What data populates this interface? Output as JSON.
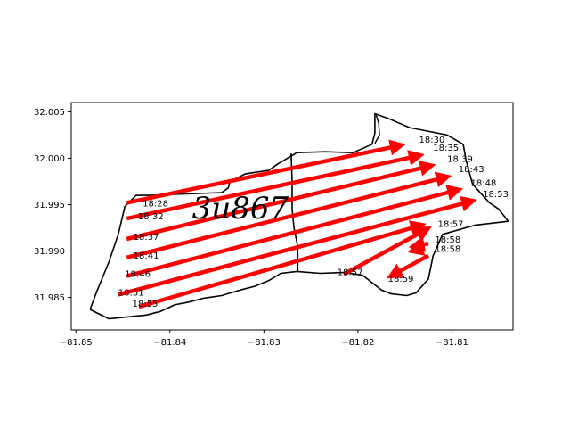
{
  "chart_data": {
    "type": "line",
    "title": "",
    "xlabel": "",
    "ylabel": "",
    "xlim": [
      -81.8505,
      -81.8035
    ],
    "ylim": [
      31.9815,
      32.006
    ],
    "x_ticks": [
      -81.85,
      -81.84,
      -81.83,
      -81.82,
      -81.81
    ],
    "x_tick_labels": [
      "−81.85",
      "−81.84",
      "−81.83",
      "−81.82",
      "−81.81"
    ],
    "y_ticks": [
      31.985,
      31.99,
      31.995,
      32.0,
      32.005
    ],
    "y_tick_labels": [
      "31.985",
      "31.990",
      "31.995",
      "32.000",
      "32.005"
    ],
    "grid": false,
    "watermark": "3u867",
    "colors": {
      "arrow": "#ff0000",
      "boundary": "#000000"
    },
    "boundary": [
      [
        -81.8485,
        31.9837
      ],
      [
        -81.8478,
        31.9856
      ],
      [
        -81.8465,
        31.9888
      ],
      [
        -81.8455,
        31.9918
      ],
      [
        -81.8448,
        31.9948
      ],
      [
        -81.8436,
        31.996
      ],
      [
        -81.842,
        31.996
      ],
      [
        -81.8395,
        31.9961
      ],
      [
        -81.8345,
        31.9963
      ],
      [
        -81.8338,
        31.9968
      ],
      [
        -81.8336,
        31.9975
      ],
      [
        -81.832,
        31.9983
      ],
      [
        -81.8295,
        31.9987
      ],
      [
        -81.8285,
        31.9994
      ],
      [
        -81.8265,
        32.0006
      ],
      [
        -81.8235,
        32.0007
      ],
      [
        -81.8205,
        32.0006
      ],
      [
        -81.8185,
        32.0015
      ],
      [
        -81.8182,
        32.0027
      ],
      [
        -81.8182,
        32.0048
      ],
      [
        -81.8168,
        32.0043
      ],
      [
        -81.8145,
        32.0033
      ],
      [
        -81.8105,
        32.0025
      ],
      [
        -81.8088,
        32.0015
      ],
      [
        -81.8085,
        31.9998
      ],
      [
        -81.8078,
        31.9972
      ],
      [
        -81.806,
        31.9952
      ],
      [
        -81.805,
        31.9945
      ],
      [
        -81.804,
        31.9932
      ],
      [
        -81.8075,
        31.9928
      ],
      [
        -81.811,
        31.9918
      ],
      [
        -81.812,
        31.9895
      ],
      [
        -81.8125,
        31.987
      ],
      [
        -81.8138,
        31.9855
      ],
      [
        -81.8148,
        31.9852
      ],
      [
        -81.8165,
        31.9854
      ],
      [
        -81.8175,
        31.9858
      ],
      [
        -81.8195,
        31.9874
      ],
      [
        -81.8215,
        31.9877
      ],
      [
        -81.824,
        31.9876
      ],
      [
        -81.8265,
        31.9878
      ],
      [
        -81.8282,
        31.9876
      ],
      [
        -81.8295,
        31.9868
      ],
      [
        -81.831,
        31.9862
      ],
      [
        -81.8325,
        31.9858
      ],
      [
        -81.8345,
        31.9852
      ],
      [
        -81.8365,
        31.9849
      ],
      [
        -81.838,
        31.9845
      ],
      [
        -81.8395,
        31.9842
      ],
      [
        -81.841,
        31.9835
      ],
      [
        -81.8425,
        31.9831
      ],
      [
        -81.8445,
        31.9829
      ],
      [
        -81.8465,
        31.9827
      ],
      [
        -81.8485,
        31.9837
      ]
    ],
    "inner_line": [
      [
        -81.8271,
        32.0005
      ],
      [
        -81.827,
        31.9975
      ],
      [
        -81.827,
        31.9945
      ],
      [
        -81.8268,
        31.9925
      ],
      [
        -81.8264,
        31.9905
      ],
      [
        -81.8264,
        31.9878
      ]
    ],
    "small_line": [
      [
        -81.8181,
        32.0048
      ],
      [
        -81.8178,
        32.0038
      ],
      [
        -81.8177,
        32.0025
      ],
      [
        -81.8182,
        32.0016
      ]
    ],
    "segments": [
      {
        "time": "18:28",
        "x1": -81.8446,
        "y1": 31.9952,
        "x2": -81.8154,
        "y2": 32.0014
      },
      {
        "time": "18:32",
        "x1": -81.8446,
        "y1": 31.9935,
        "x2": -81.8134,
        "y2": 32.0003
      },
      {
        "time": "18:35",
        "label_only": true,
        "x": -81.8125,
        "y": 32.0006
      },
      {
        "time": "18:37",
        "x1": -81.8446,
        "y1": 31.9913,
        "x2": -81.8122,
        "y2": 31.9992
      },
      {
        "time": "18:39",
        "label_only": true,
        "x": -81.8112,
        "y": 31.9994
      },
      {
        "time": "18:41",
        "x1": -81.8446,
        "y1": 31.9893,
        "x2": -81.8105,
        "y2": 31.998
      },
      {
        "time": "18:43",
        "label_only": true,
        "x": -81.8102,
        "y": 31.9983
      },
      {
        "time": "18:46",
        "x1": -81.8446,
        "y1": 31.9873,
        "x2": -81.8093,
        "y2": 31.9966
      },
      {
        "time": "18:48",
        "label_only": true,
        "x": -81.8092,
        "y": 31.9969
      },
      {
        "time": "18:51",
        "x1": -81.8455,
        "y1": 31.9853,
        "x2": -81.8078,
        "y2": 31.9954
      },
      {
        "time": "18:53",
        "label_only": true,
        "x": -81.8072,
        "y": 31.9956
      },
      {
        "time": "18:55",
        "x1": -81.8433,
        "y1": 31.984,
        "x2": -81.8132,
        "y2": 31.9928
      },
      {
        "time": "18:57",
        "x1": -81.8215,
        "y1": 31.9875,
        "x2": -81.8126,
        "y2": 31.9924
      },
      {
        "time": "18:58",
        "x1": -81.8125,
        "y1": 31.9908,
        "x2": -81.8141,
        "y2": 31.9905
      },
      {
        "time": "18:58",
        "x1": -81.8141,
        "y1": 31.9905,
        "x2": -81.8132,
        "y2": 31.9898
      },
      {
        "time": "18:57",
        "x1": -81.8125,
        "y1": 31.9895,
        "x2": -81.8165,
        "y2": 31.9873
      },
      {
        "time": "18:59",
        "label_only": true,
        "x": -81.8165,
        "y": 31.9866
      }
    ],
    "time_labels": [
      {
        "text": "18:30",
        "x": -81.8135,
        "y": 32.0017
      },
      {
        "text": "18:35",
        "x": -81.812,
        "y": 32.0008
      },
      {
        "text": "18:39",
        "x": -81.8105,
        "y": 31.9996
      },
      {
        "text": "18:43",
        "x": -81.8093,
        "y": 31.9985
      },
      {
        "text": "18:48",
        "x": -81.808,
        "y": 31.997
      },
      {
        "text": "18:53",
        "x": -81.8067,
        "y": 31.9958
      },
      {
        "text": "18:28",
        "x": -81.8429,
        "y": 31.9948
      },
      {
        "text": "18:32",
        "x": -81.8434,
        "y": 31.9934
      },
      {
        "text": "18:37",
        "x": -81.8439,
        "y": 31.9912
      },
      {
        "text": "18:41",
        "x": -81.8439,
        "y": 31.9892
      },
      {
        "text": "18:46",
        "x": -81.8448,
        "y": 31.9872
      },
      {
        "text": "18:51",
        "x": -81.8455,
        "y": 31.9852
      },
      {
        "text": "18:55",
        "x": -81.844,
        "y": 31.984
      },
      {
        "text": "18:57",
        "x": -81.8115,
        "y": 31.9926
      },
      {
        "text": "18:58",
        "x": -81.8118,
        "y": 31.9909
      },
      {
        "text": "18:58",
        "x": -81.8118,
        "y": 31.9899
      },
      {
        "text": "18:57",
        "x": -81.8222,
        "y": 31.9874
      },
      {
        "text": "18:59",
        "x": -81.8168,
        "y": 31.9867
      }
    ]
  }
}
